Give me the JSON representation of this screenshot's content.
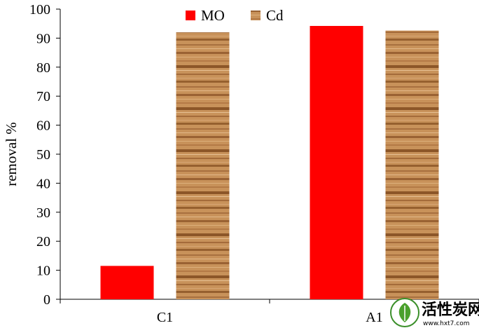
{
  "chart_data": {
    "type": "bar",
    "categories": [
      "C1",
      "A1"
    ],
    "series": [
      {
        "name": "MO",
        "values": [
          11.5,
          94.2
        ],
        "color": "#ff0000",
        "fill": "solid"
      },
      {
        "name": "Cd",
        "values": [
          92.0,
          92.6
        ],
        "color": "#c8925a",
        "fill": "wood-texture"
      }
    ],
    "title": "",
    "xlabel": "",
    "ylabel": "removal %",
    "ylim": [
      0,
      100
    ],
    "yticks": [
      0,
      10,
      20,
      30,
      40,
      50,
      60,
      70,
      80,
      90,
      100
    ],
    "grid": false,
    "legend": "top-center"
  },
  "watermark": {
    "title": "活性炭网",
    "url": "www.hxt7.com"
  }
}
